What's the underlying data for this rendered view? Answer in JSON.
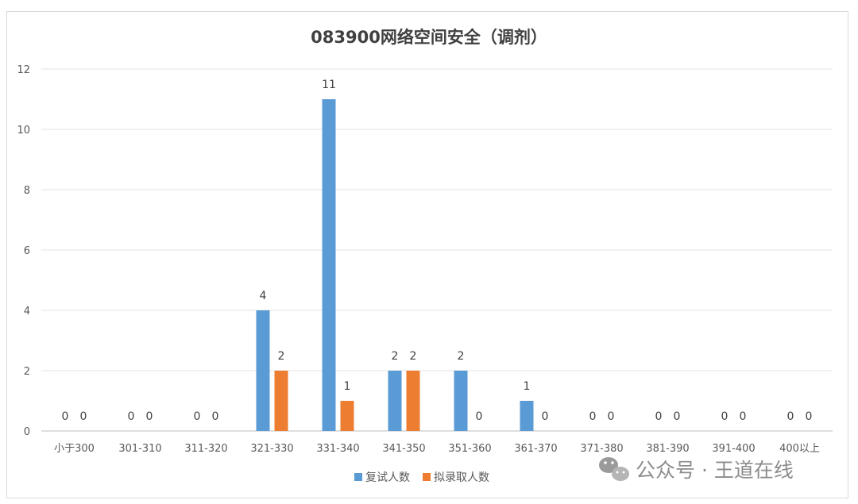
{
  "chart_data": {
    "type": "bar",
    "title": "083900网络空间安全（调剂）",
    "categories": [
      "小于300",
      "301-310",
      "311-320",
      "321-330",
      "331-340",
      "341-350",
      "351-360",
      "361-370",
      "371-380",
      "381-390",
      "391-400",
      "400以上"
    ],
    "series": [
      {
        "name": "复试人数",
        "color": "#5b9bd5",
        "values": [
          0,
          0,
          0,
          4,
          11,
          2,
          2,
          1,
          0,
          0,
          0,
          0
        ]
      },
      {
        "name": "拟录取人数",
        "color": "#ed7d31",
        "values": [
          0,
          0,
          0,
          2,
          1,
          2,
          0,
          0,
          0,
          0,
          0,
          0
        ]
      }
    ],
    "ylim": [
      0,
      12
    ],
    "yticks": [
      0,
      2,
      4,
      6,
      8,
      10,
      12
    ],
    "grid": true,
    "legend_position": "bottom",
    "data_labels": true
  },
  "watermark": {
    "text": "公众号 · 王道在线",
    "icon": "wechat-icon"
  }
}
